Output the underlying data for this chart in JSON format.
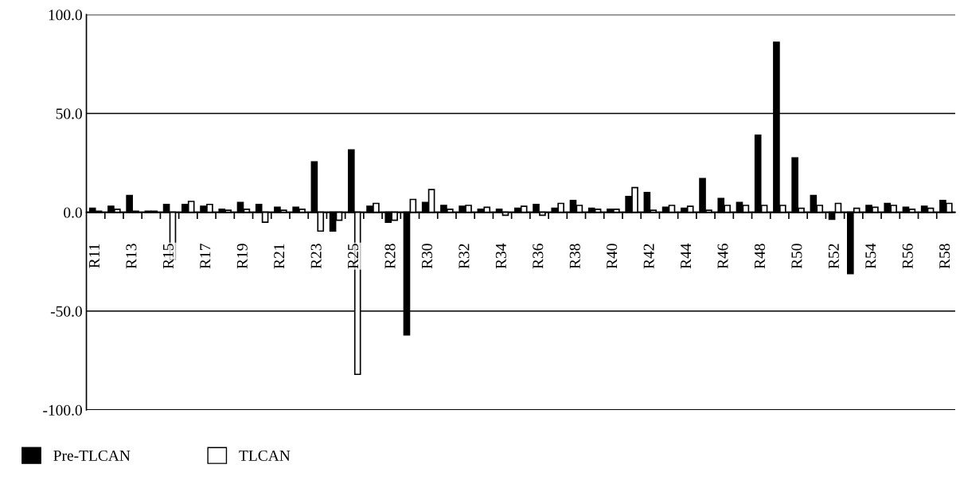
{
  "chart_data": {
    "type": "bar",
    "categories": [
      "R11",
      null,
      "R13",
      null,
      "R15",
      null,
      "R17",
      null,
      "R19",
      null,
      "R21",
      null,
      "R23",
      null,
      "R25",
      null,
      "R28",
      null,
      "R30",
      null,
      "R32",
      null,
      "R34",
      null,
      "R36",
      null,
      "R38",
      null,
      "R40",
      null,
      "R42",
      null,
      "R44",
      null,
      "R46",
      null,
      "R48",
      null,
      "R50",
      null,
      "R52",
      null,
      "R54",
      null,
      "R56",
      null,
      "R58"
    ],
    "series": [
      {
        "name": "Pre-TLCAN",
        "color": "#000000",
        "values": [
          2,
          3,
          8.5,
          0.5,
          4,
          4,
          3,
          1.5,
          5,
          4,
          2.5,
          2.5,
          25.5,
          -9.5,
          31.5,
          3,
          -5,
          -62,
          5,
          3.5,
          3,
          1.5,
          1.5,
          2,
          4,
          2,
          6,
          2,
          1.5,
          8,
          10,
          2.5,
          2,
          17,
          7,
          5,
          39,
          86,
          27.5,
          8.5,
          -3.5,
          -31,
          3.5,
          4.5,
          2.5,
          3,
          6
        ]
      },
      {
        "name": "TLCAN",
        "color": "#ffffff",
        "values": [
          0.5,
          1.5,
          0.5,
          0.5,
          -24,
          5.5,
          4,
          1,
          1.5,
          -5,
          1,
          1.5,
          -9.5,
          -4,
          -82,
          4.5,
          -4,
          6.5,
          11.5,
          1.5,
          3.5,
          2.5,
          -1.5,
          3,
          -1.5,
          4.5,
          3.5,
          1.5,
          1.5,
          12.5,
          1,
          3.5,
          3,
          1,
          3.5,
          3.5,
          3.5,
          3.5,
          2,
          3.5,
          4.5,
          2,
          2.5,
          3.5,
          1.5,
          2,
          4.5
        ]
      }
    ],
    "ylim": [
      -100,
      100
    ],
    "yticks": [
      {
        "value": -100,
        "label": "-100.0"
      },
      {
        "value": -50,
        "label": "-50.0"
      },
      {
        "value": 0,
        "label": "0.0"
      },
      {
        "value": 50,
        "label": "50.0"
      },
      {
        "value": 100,
        "label": "100.0"
      }
    ],
    "grid": "y",
    "legend": "bottom left"
  }
}
